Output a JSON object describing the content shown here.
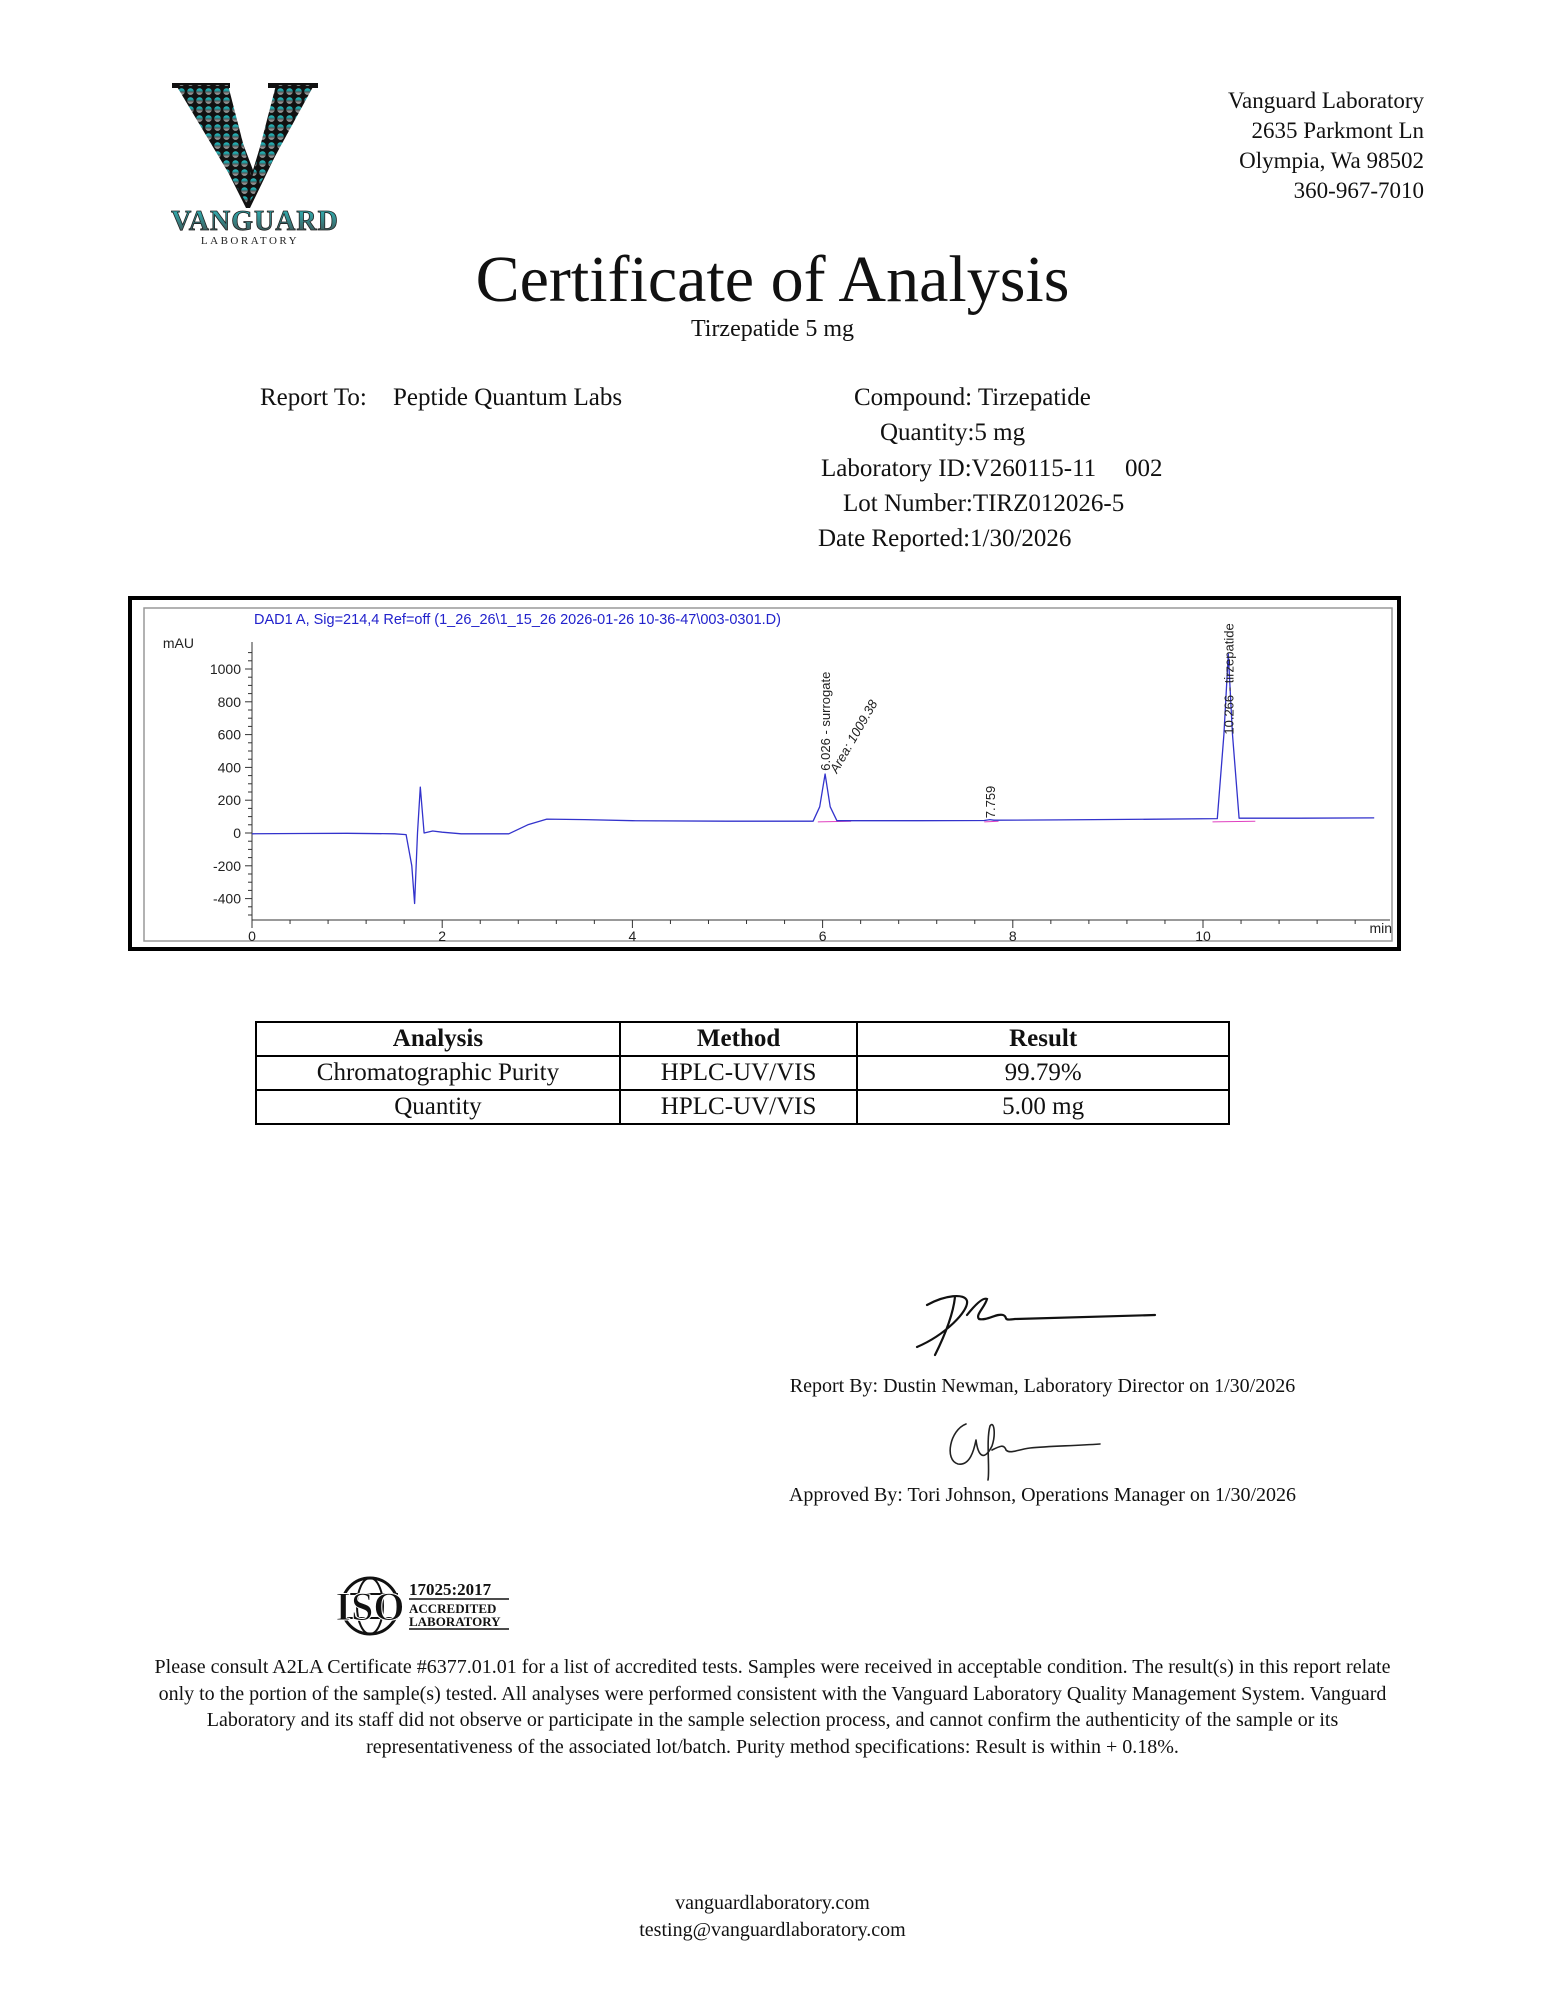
{
  "logo": {
    "text": "VANGUARD",
    "subtext": "LABORATORY",
    "colors": {
      "teal": "#2bbfc2",
      "silver": "#a8a8a8",
      "dark": "#1a1a1a"
    }
  },
  "address": {
    "name": "Vanguard Laboratory",
    "street": "2635 Parkmont Ln",
    "city": "Olympia, Wa 98502",
    "phone": "360-967-7010"
  },
  "header": {
    "title": "Certificate of Analysis",
    "subtitle": "Tirzepatide 5 mg"
  },
  "report_to": {
    "label": "Report To:",
    "value": "Peptide Quantum Labs"
  },
  "sample": {
    "compound": "Compound: Tirzepatide",
    "quantity": "Quantity:5 mg",
    "lab_id": "Laboratory ID:V260115-11",
    "lab_id_suffix": "002",
    "lot": "Lot Number:TIRZ012026-5",
    "date": "Date Reported:1/30/2026"
  },
  "chart_data": {
    "type": "line",
    "title": "DAD1 A, Sig=214,4 Ref=off (1_26_26\\1_15_26 2026-01-26 10-36-47\\003-0301.D)",
    "xlabel": "min",
    "ylabel": "mAU",
    "xlim": [
      0,
      11.8
    ],
    "ylim": [
      -520,
      1150
    ],
    "x_ticks": [
      0,
      2,
      4,
      6,
      8,
      10
    ],
    "y_ticks": [
      1000,
      800,
      600,
      400,
      200,
      0,
      -200,
      -400
    ],
    "grid": false,
    "line_color": "#3333cc",
    "series": [
      {
        "x": [
          0,
          0.5,
          1.0,
          1.5,
          1.62,
          1.68,
          1.71,
          1.74,
          1.77,
          1.81,
          1.9,
          2.0,
          2.2,
          2.5,
          2.7,
          2.9,
          3.1,
          3.5,
          4.0,
          5.0,
          5.9,
          5.97,
          6.026,
          6.08,
          6.15,
          7.0,
          7.7,
          7.759,
          7.8,
          8.5,
          9.5,
          10.15,
          10.22,
          10.266,
          10.31,
          10.38,
          11.0,
          11.8
        ],
        "y": [
          -5,
          -3,
          -2,
          -5,
          -10,
          -200,
          -430,
          0,
          280,
          0,
          12,
          5,
          -5,
          -5,
          -5,
          50,
          85,
          82,
          75,
          72,
          72,
          160,
          360,
          160,
          75,
          75,
          76,
          82,
          78,
          80,
          84,
          88,
          600,
          1090,
          600,
          90,
          90,
          92
        ]
      }
    ],
    "annotations": [
      {
        "x": 6.026,
        "label": "6.026 - surrogate"
      },
      {
        "x": 6.026,
        "label": "Area: 1009.38"
      },
      {
        "x": 7.759,
        "label": "7.759"
      },
      {
        "x": 10.266,
        "label": "10.266 - tirzepatide"
      }
    ]
  },
  "results_table": {
    "headers": [
      "Analysis",
      "Method",
      "Result"
    ],
    "rows": [
      [
        "Chromatographic Purity",
        "HPLC-UV/VIS",
        "99.79%"
      ],
      [
        "Quantity",
        "HPLC-UV/VIS",
        "5.00 mg"
      ]
    ]
  },
  "signatures": {
    "report_by": "Report By: Dustin Newman, Laboratory Director on 1/30/2026",
    "approved_by": "Approved By: Tori Johnson, Operations Manager on 1/30/2026"
  },
  "iso": {
    "mark": "ISO",
    "standard": "17025:2017",
    "line1": "ACCREDITED",
    "line2": "LABORATORY"
  },
  "disclaimer": "Please consult A2LA Certificate #6377.01.01 for a list of accredited tests. Samples were received in acceptable condition. The result(s) in this report relate only to the portion of the sample(s) tested. All analyses were performed consistent with the Vanguard Laboratory Quality Management System. Vanguard Laboratory and its staff did not observe or participate in the sample selection process, and cannot confirm the authenticity of the sample or its representativeness of the associated lot/batch. Purity method specifications: Result is within + 0.18%.",
  "footer": {
    "website": "vanguardlaboratory.com",
    "email": "testing@vanguardlaboratory.com"
  }
}
